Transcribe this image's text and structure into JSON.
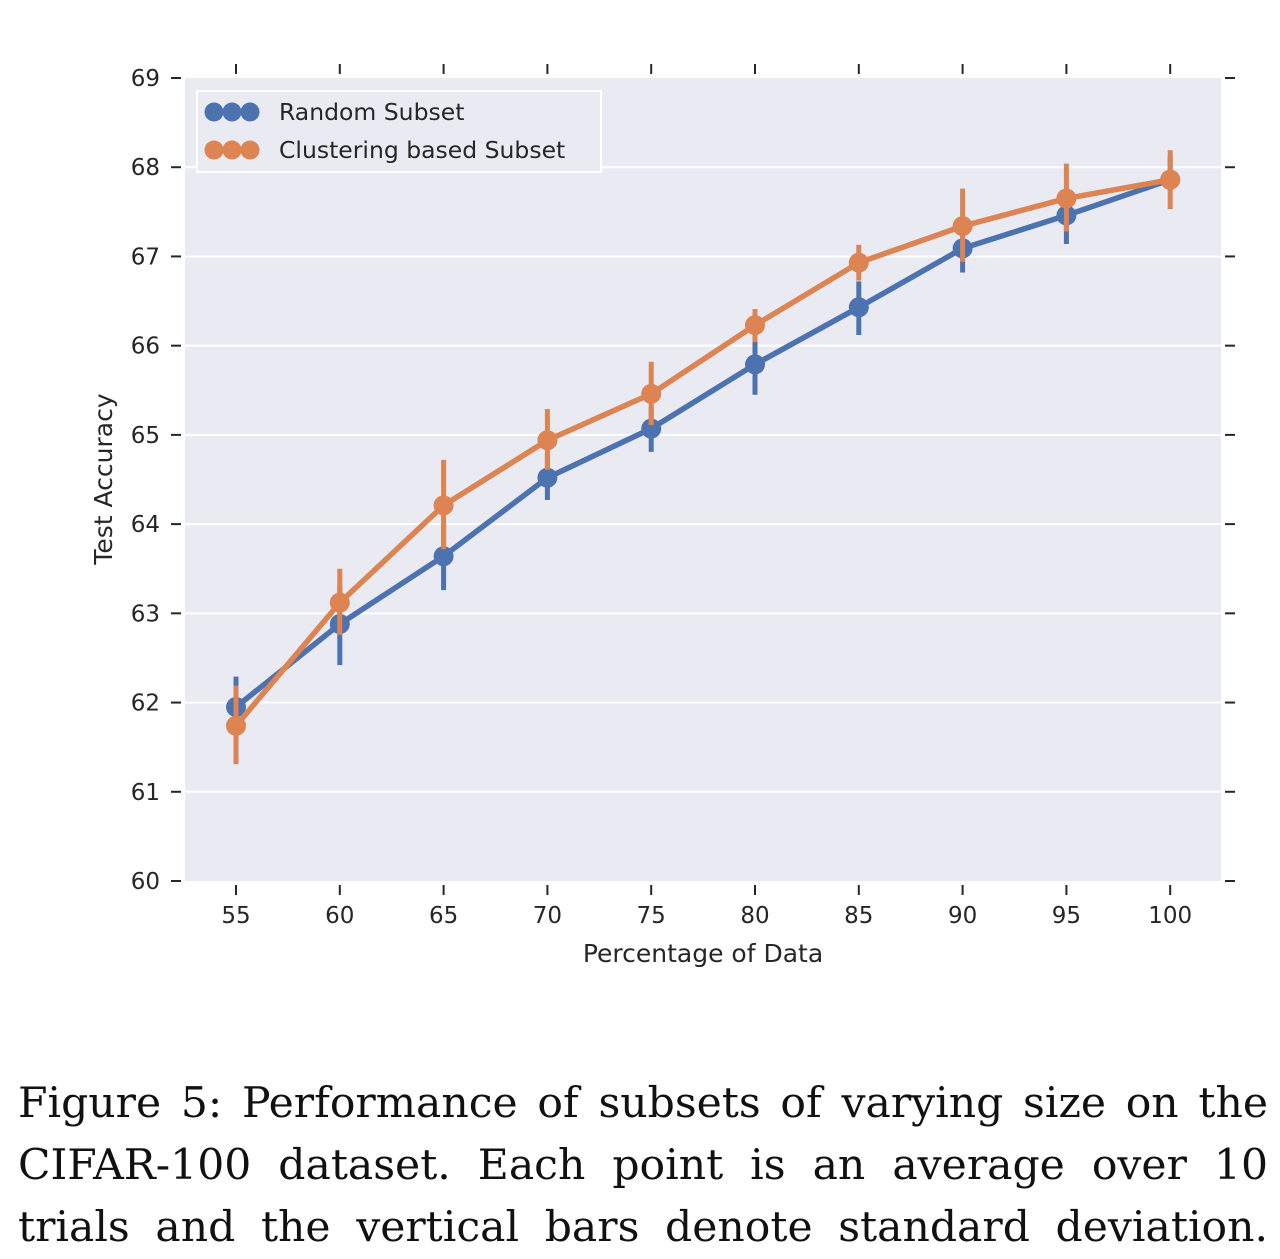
{
  "chart_data": {
    "type": "line",
    "title": "",
    "xlabel": "Percentage of Data",
    "ylabel": "Test Accuracy",
    "categories": [
      "55",
      "60",
      "65",
      "70",
      "75",
      "80",
      "85",
      "90",
      "95",
      "100"
    ],
    "ylim": [
      60,
      69
    ],
    "yticks": [
      "60",
      "61",
      "62",
      "63",
      "64",
      "65",
      "66",
      "67",
      "68",
      "69"
    ],
    "grid": true,
    "legend_position": "top-left",
    "series": [
      {
        "name": "Random Subset",
        "color": "#4c72b0",
        "values": [
          61.95,
          62.88,
          63.64,
          64.52,
          65.07,
          65.79,
          66.43,
          67.09,
          67.46,
          67.86
        ],
        "error_low": [
          61.7,
          62.42,
          63.26,
          64.27,
          64.81,
          65.45,
          66.12,
          66.82,
          67.14,
          67.86
        ],
        "error_high": [
          62.29,
          63.32,
          64.0,
          64.78,
          65.31,
          66.1,
          66.72,
          67.34,
          67.74,
          68.12
        ]
      },
      {
        "name": "Clustering based Subset",
        "color": "#dd8452",
        "values": [
          61.74,
          63.12,
          64.21,
          64.94,
          65.46,
          66.23,
          66.93,
          67.34,
          67.65,
          67.86
        ],
        "error_low": [
          61.31,
          62.76,
          63.72,
          64.61,
          65.11,
          66.04,
          66.73,
          66.94,
          67.28,
          67.53
        ],
        "error_high": [
          62.19,
          63.5,
          64.72,
          65.29,
          65.82,
          66.41,
          67.13,
          67.76,
          68.04,
          68.19
        ]
      }
    ]
  },
  "caption": "Figure 5: Performance of subsets of varying size on the CIFAR-100 dataset. Each point is an average over 10 trials and the vertical bars denote standard deviation."
}
